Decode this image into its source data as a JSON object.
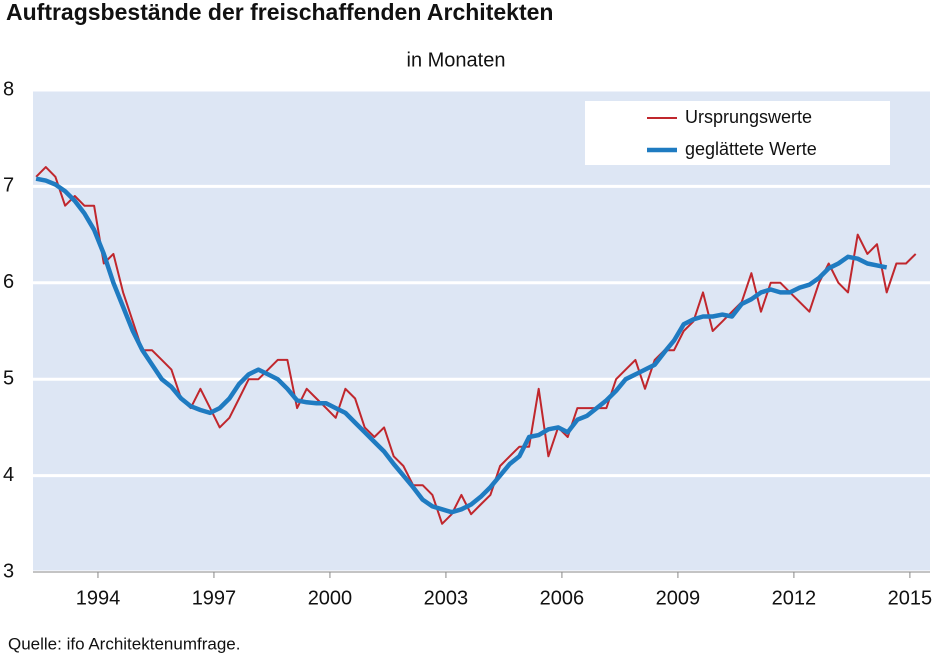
{
  "chart_data": {
    "type": "line",
    "title": "Auftragsbestände der freischaffenden Architekten",
    "subtitle": "in Monaten",
    "source": "Quelle: ifo Architektenumfrage.",
    "x": [
      1992.4,
      1992.65,
      1992.9,
      1993.15,
      1993.4,
      1993.65,
      1993.9,
      1994.15,
      1994.4,
      1994.65,
      1994.9,
      1995.15,
      1995.4,
      1995.65,
      1995.9,
      1996.15,
      1996.4,
      1996.65,
      1996.9,
      1997.15,
      1997.4,
      1997.65,
      1997.9,
      1998.15,
      1998.4,
      1998.65,
      1998.9,
      1999.15,
      1999.4,
      1999.65,
      1999.9,
      2000.15,
      2000.4,
      2000.65,
      2000.9,
      2001.15,
      2001.4,
      2001.65,
      2001.9,
      2002.15,
      2002.4,
      2002.65,
      2002.9,
      2003.15,
      2003.4,
      2003.65,
      2003.9,
      2004.15,
      2004.4,
      2004.65,
      2004.9,
      2005.15,
      2005.4,
      2005.65,
      2005.9,
      2006.15,
      2006.4,
      2006.65,
      2006.9,
      2007.15,
      2007.4,
      2007.65,
      2007.9,
      2008.15,
      2008.4,
      2008.65,
      2008.9,
      2009.15,
      2009.4,
      2009.65,
      2009.9,
      2010.15,
      2010.4,
      2010.65,
      2010.9,
      2011.15,
      2011.4,
      2011.65,
      2011.9,
      2012.15,
      2012.4,
      2012.65,
      2012.9,
      2013.15,
      2013.4,
      2013.65,
      2013.9,
      2014.15,
      2014.4,
      2014.65,
      2014.9,
      2015.15
    ],
    "series": [
      {
        "name": "Ursprungswerte",
        "color": "#c0272d",
        "width": 2,
        "values": [
          7.1,
          7.2,
          7.1,
          6.8,
          6.9,
          6.8,
          6.8,
          6.2,
          6.3,
          5.9,
          5.6,
          5.3,
          5.3,
          5.2,
          5.1,
          4.8,
          4.7,
          4.9,
          4.7,
          4.5,
          4.6,
          4.8,
          5.0,
          5.0,
          5.1,
          5.2,
          5.2,
          4.7,
          4.9,
          4.8,
          4.7,
          4.6,
          4.9,
          4.8,
          4.5,
          4.4,
          4.5,
          4.2,
          4.1,
          3.9,
          3.9,
          3.8,
          3.5,
          3.6,
          3.8,
          3.6,
          3.7,
          3.8,
          4.1,
          4.2,
          4.3,
          4.3,
          4.9,
          4.2,
          4.5,
          4.4,
          4.7,
          4.7,
          4.7,
          4.7,
          5.0,
          5.1,
          5.2,
          4.9,
          5.2,
          5.3,
          5.3,
          5.5,
          5.6,
          5.9,
          5.5,
          5.6,
          5.7,
          5.8,
          6.1,
          5.7,
          6.0,
          6.0,
          5.9,
          5.8,
          5.7,
          6.0,
          6.2,
          6.0,
          5.9,
          6.5,
          6.3,
          6.4,
          5.9,
          6.2,
          6.2,
          6.3
        ]
      },
      {
        "name": "geglättete Werte",
        "color": "#1f7bc1",
        "width": 4.5,
        "values": [
          7.08,
          7.06,
          7.02,
          6.95,
          6.85,
          6.72,
          6.55,
          6.3,
          6.0,
          5.75,
          5.5,
          5.3,
          5.15,
          5.0,
          4.92,
          4.8,
          4.72,
          4.68,
          4.65,
          4.7,
          4.8,
          4.95,
          5.05,
          5.1,
          5.05,
          5.0,
          4.9,
          4.78,
          4.76,
          4.75,
          4.75,
          4.7,
          4.65,
          4.55,
          4.45,
          4.35,
          4.25,
          4.12,
          4.0,
          3.88,
          3.75,
          3.68,
          3.65,
          3.62,
          3.65,
          3.7,
          3.78,
          3.88,
          4.0,
          4.12,
          4.2,
          4.4,
          4.42,
          4.48,
          4.5,
          4.45,
          4.58,
          4.62,
          4.7,
          4.78,
          4.88,
          5.0,
          5.05,
          5.1,
          5.15,
          5.28,
          5.4,
          5.57,
          5.62,
          5.65,
          5.65,
          5.67,
          5.65,
          5.78,
          5.83,
          5.9,
          5.93,
          5.9,
          5.9,
          5.95,
          5.98,
          6.05,
          6.15,
          6.2,
          6.27,
          6.25,
          6.2,
          6.18,
          6.16,
          null,
          null,
          null
        ]
      }
    ],
    "xlim": [
      1992.32,
      2015.52
    ],
    "xticks": [
      1994,
      1997,
      2000,
      2003,
      2006,
      2009,
      2012,
      2015
    ],
    "ylim": [
      3,
      8
    ],
    "yticks": [
      3,
      4,
      5,
      6,
      7,
      8
    ],
    "grid": true,
    "legend": "top-right"
  }
}
